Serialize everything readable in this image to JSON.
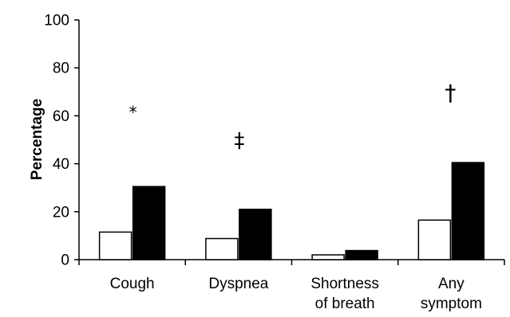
{
  "chart_data": {
    "type": "bar",
    "categories": [
      "Cough",
      "Dyspnea",
      "Shortness of breath",
      "Any symptom"
    ],
    "category_label_lines": [
      [
        "Cough"
      ],
      [
        "Dyspnea"
      ],
      [
        "Shortness",
        "of breath"
      ],
      [
        "Any",
        "symptom"
      ]
    ],
    "series": [
      {
        "values": [
          11.5,
          8.8,
          2.0,
          16.5
        ]
      },
      {
        "values": [
          30.5,
          21.0,
          3.8,
          40.5
        ]
      }
    ],
    "series_colors": [
      "#ffffff",
      "#000000"
    ],
    "ylabel": "Percentage",
    "xlabel": "",
    "ylim": [
      0,
      100
    ],
    "yticks": [
      0,
      20,
      40,
      60,
      80,
      100
    ],
    "annotations": [
      {
        "category": "Cough",
        "text": "*"
      },
      {
        "category": "Dyspnea",
        "text": "‡"
      },
      {
        "category": "Any symptom",
        "text": "†"
      }
    ],
    "grid": false,
    "legend": "none"
  }
}
